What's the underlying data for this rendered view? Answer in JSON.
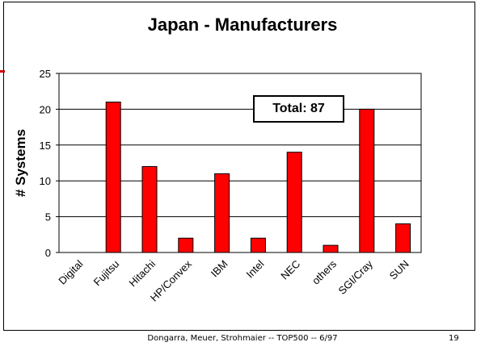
{
  "chart_data": {
    "type": "bar",
    "title": "Japan - Manufacturers",
    "xlabel": "",
    "ylabel": "# Systems",
    "ylim": [
      0,
      25
    ],
    "yticks": [
      0,
      5,
      10,
      15,
      20,
      25
    ],
    "grid": true,
    "categories": [
      "Digital",
      "Fujitsu",
      "Hitachi",
      "HP/Convex",
      "IBM",
      "Intel",
      "NEC",
      "others",
      "SGI/Cray",
      "SUN"
    ],
    "values": [
      0,
      21,
      12,
      2,
      11,
      2,
      14,
      1,
      20,
      4
    ],
    "bar_color": "#ff0000",
    "annotation": "Total: 87"
  },
  "footer": {
    "text": "Dongarra, Meuer, Strohmaier -- TOP500 -- 6/97",
    "page_number": "19"
  }
}
